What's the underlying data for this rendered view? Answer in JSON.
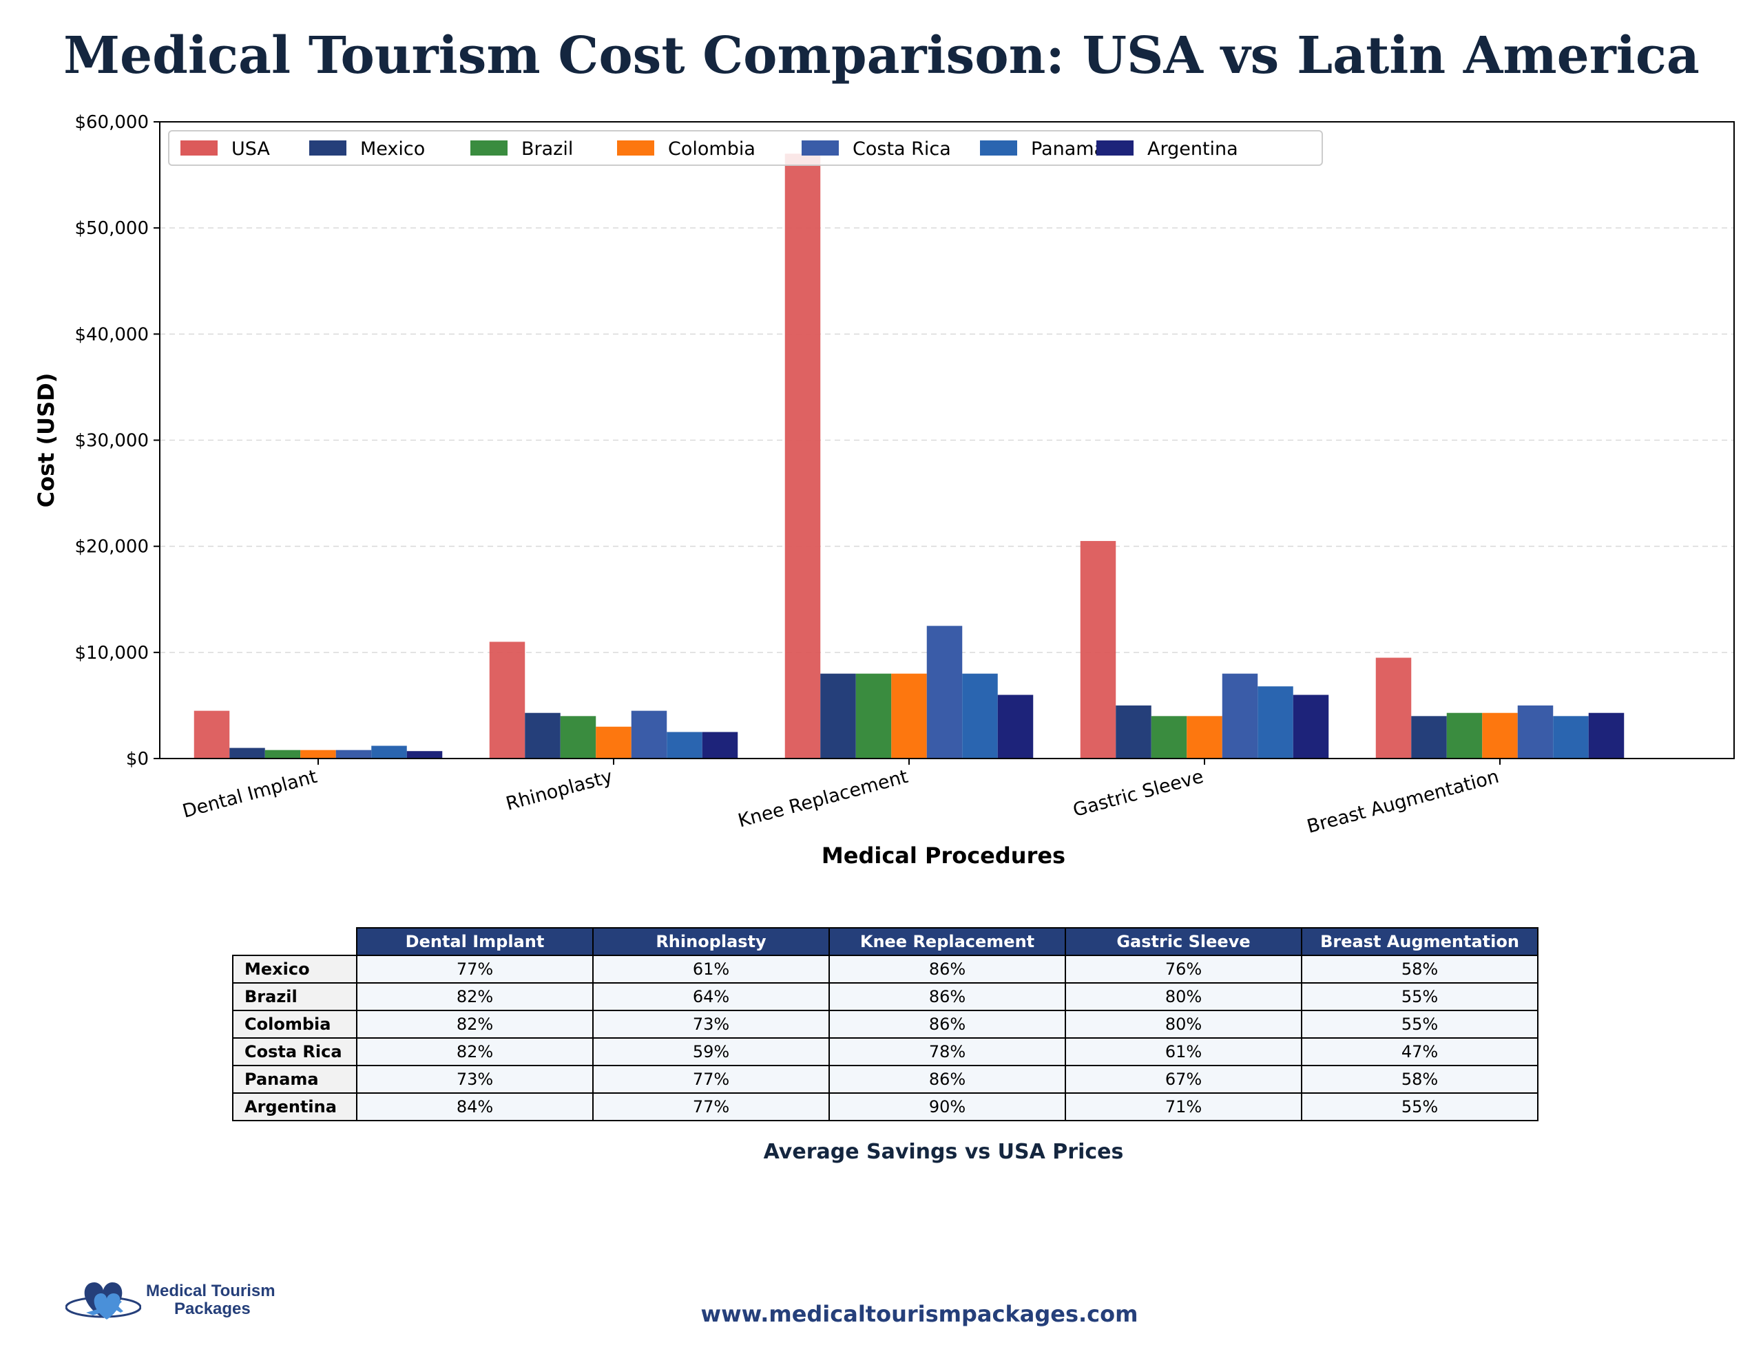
{
  "title": "Medical Tourism Cost Comparison: USA vs Latin America",
  "chart_data": {
    "type": "bar",
    "title": "Medical Tourism Cost Comparison: USA vs Latin America",
    "xlabel": "Medical Procedures",
    "ylabel": "Cost (USD)",
    "ylim": [
      0,
      60000
    ],
    "yticks": [
      0,
      10000,
      20000,
      30000,
      40000,
      50000,
      60000
    ],
    "ytick_labels": [
      "$0",
      "$10,000",
      "$20,000",
      "$30,000",
      "$40,000",
      "$50,000",
      "$60,000"
    ],
    "grid": "y, dashed",
    "legend_position": "top-left",
    "categories": [
      "Dental Implant",
      "Rhinoplasty",
      "Knee Replacement",
      "Gastric Sleeve",
      "Breast Augmentation"
    ],
    "series": [
      {
        "name": "USA",
        "color": "#dc5a5a",
        "values": [
          4500,
          11000,
          57000,
          20500,
          9500
        ]
      },
      {
        "name": "Mexico",
        "color": "#253f7a",
        "values": [
          1000,
          4300,
          8000,
          5000,
          4000
        ]
      },
      {
        "name": "Brazil",
        "color": "#3a8c3f",
        "values": [
          800,
          4000,
          8000,
          4000,
          4300
        ]
      },
      {
        "name": "Colombia",
        "color": "#fd770f",
        "values": [
          800,
          3000,
          8000,
          4000,
          4300
        ]
      },
      {
        "name": "Costa Rica",
        "color": "#3a5ca8",
        "values": [
          800,
          4500,
          12500,
          8000,
          5000
        ]
      },
      {
        "name": "Panama",
        "color": "#2a65b0",
        "values": [
          1200,
          2500,
          8000,
          6800,
          4000
        ]
      },
      {
        "name": "Argentina",
        "color": "#1d237a",
        "values": [
          700,
          2500,
          6000,
          6000,
          4300
        ]
      }
    ]
  },
  "savings_table": {
    "title": "Average Savings vs USA Prices",
    "columns": [
      "Dental Implant",
      "Rhinoplasty",
      "Knee Replacement",
      "Gastric Sleeve",
      "Breast Augmentation"
    ],
    "rows": [
      {
        "country": "Mexico",
        "values": [
          "77%",
          "61%",
          "86%",
          "76%",
          "58%"
        ]
      },
      {
        "country": "Brazil",
        "values": [
          "82%",
          "64%",
          "86%",
          "80%",
          "55%"
        ]
      },
      {
        "country": "Colombia",
        "values": [
          "82%",
          "73%",
          "86%",
          "80%",
          "55%"
        ]
      },
      {
        "country": "Costa Rica",
        "values": [
          "82%",
          "59%",
          "78%",
          "61%",
          "47%"
        ]
      },
      {
        "country": "Panama",
        "values": [
          "73%",
          "77%",
          "86%",
          "67%",
          "58%"
        ]
      },
      {
        "country": "Argentina",
        "values": [
          "84%",
          "77%",
          "90%",
          "71%",
          "55%"
        ]
      }
    ]
  },
  "logo": {
    "line1": "Medical Tourism",
    "line2": "Packages",
    "icon": "heart-plane-icon"
  },
  "footer": {
    "url": "www.medicaltourismpackages.com"
  }
}
